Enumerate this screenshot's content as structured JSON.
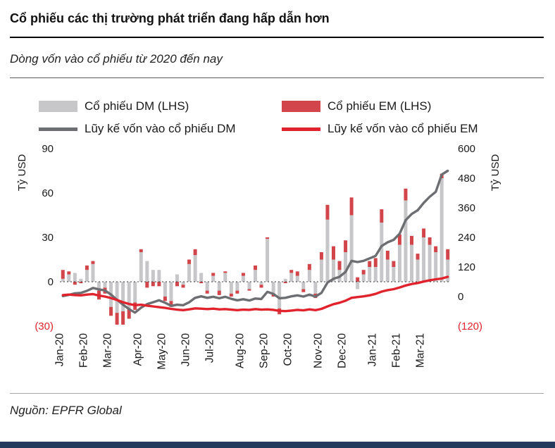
{
  "page": {
    "title": "Cổ phiếu các thị trường phát triển đang hấp dẫn hơn",
    "subtitle": "Dòng vốn vào cổ phiếu từ 2020 đến nay",
    "source": "Nguồn: EPFR Global"
  },
  "legend": {
    "dm_bar": "Cổ phiếu DM (LHS)",
    "em_bar": "Cổ phiếu EM (LHS)",
    "dm_line": "Lũy kế vốn vào cổ phiếu DM",
    "em_line": "Lũy kế vốn vào cổ phiếu EM"
  },
  "colors": {
    "dm_bar": "#c7c7c9",
    "em_bar": "#d2464b",
    "dm_line": "#6d6e71",
    "em_line": "#e0232d",
    "negative_tick": "#e0232d",
    "tick_text": "#1a1a1a",
    "footer_bar": "#233a5c"
  },
  "chart_data": {
    "type": "bar",
    "subtype": "weekly bars with cumulative lines (combo bar+line, dual axis)",
    "categories": [
      "Jan-20",
      "Feb-20",
      "Mar-20",
      "Apr-20",
      "May-20",
      "Jun-20",
      "Jul-20",
      "Aug-20",
      "Sep-20",
      "Oct-20",
      "Nov-20",
      "Dec-20",
      "Jan-21",
      "Feb-21",
      "Mar-21"
    ],
    "weeks_per_month": [
      4,
      4,
      5,
      4,
      4,
      4,
      5,
      4,
      4,
      5,
      4,
      5,
      4,
      4,
      5
    ],
    "left_axis": {
      "title": "Tỷ USD",
      "min": -30,
      "max": 90,
      "ticks": [
        90,
        60,
        30,
        0,
        -30
      ],
      "tick_labels": [
        "90",
        "60",
        "30",
        "0",
        "(30)"
      ]
    },
    "right_axis": {
      "title": "Tỷ USD",
      "min": -120,
      "max": 600,
      "ticks": [
        600,
        480,
        360,
        240,
        120,
        0,
        -120
      ],
      "tick_labels": [
        "600",
        "480",
        "360",
        "240",
        "120",
        "0",
        "(120)"
      ]
    },
    "grid": "none (dotted zero line only)",
    "legend_position": "top",
    "series": [
      {
        "name": "Cổ phiếu DM (LHS)",
        "type": "bar",
        "axis": "left",
        "color_key": "dm_bar",
        "values": [
          2,
          5,
          6,
          2,
          8,
          12,
          -6,
          -4,
          -17,
          -21,
          -20,
          -18,
          -14,
          20,
          14,
          8,
          8,
          -10,
          -13,
          5,
          -2,
          12,
          18,
          6,
          -6,
          4,
          -6,
          6,
          -8,
          -6,
          4,
          -5,
          8,
          -2,
          29,
          -8,
          -18,
          2,
          6,
          4,
          -5,
          8,
          -8,
          15,
          42,
          15,
          8,
          20,
          45,
          -5,
          5,
          10,
          10,
          40,
          15,
          10,
          25,
          55,
          25,
          15,
          30,
          25,
          20,
          70,
          15
        ]
      },
      {
        "name": "Cổ phiếu EM (LHS)",
        "type": "bar",
        "axis": "left",
        "stacked_on": "Cổ phiếu DM (LHS)",
        "color_key": "em_bar",
        "values": [
          6,
          2,
          -2,
          -1,
          3,
          2,
          -6,
          -4,
          -6,
          -8,
          -9,
          -7,
          -5,
          2,
          -4,
          -3,
          -3,
          -3,
          -4,
          -3,
          -2,
          3,
          4,
          -1,
          -2,
          2,
          -3,
          1,
          -2,
          -2,
          2,
          -1,
          3,
          -2,
          1,
          -2,
          -4,
          -1,
          2,
          3,
          -2,
          4,
          -3,
          5,
          10,
          9,
          6,
          8,
          12,
          3,
          3,
          4,
          6,
          9,
          6,
          4,
          7,
          8,
          6,
          4,
          6,
          5,
          4,
          3,
          7
        ]
      },
      {
        "name": "Lũy kế vốn vào cổ phiếu DM",
        "type": "line",
        "axis": "right",
        "color_key": "dm_line",
        "values": [
          2,
          7,
          13,
          15,
          23,
          35,
          29,
          25,
          8,
          -13,
          -33,
          -51,
          -65,
          -45,
          -31,
          -23,
          -15,
          -25,
          -38,
          -33,
          -35,
          -23,
          -5,
          1,
          -5,
          -1,
          -7,
          -1,
          -9,
          -15,
          -11,
          -16,
          -8,
          -10,
          19,
          11,
          -7,
          -5,
          1,
          5,
          0,
          8,
          0,
          15,
          57,
          72,
          80,
          100,
          145,
          140,
          145,
          155,
          165,
          205,
          220,
          230,
          255,
          310,
          335,
          350,
          380,
          405,
          425,
          495,
          510
        ]
      },
      {
        "name": "Lũy kế vốn vào cổ phiếu EM",
        "type": "line",
        "axis": "right",
        "color_key": "em_line",
        "values": [
          6,
          8,
          6,
          5,
          8,
          10,
          4,
          0,
          -6,
          -14,
          -23,
          -30,
          -35,
          -33,
          -37,
          -40,
          -43,
          -46,
          -50,
          -53,
          -55,
          -52,
          -48,
          -49,
          -51,
          -49,
          -52,
          -51,
          -53,
          -55,
          -53,
          -54,
          -51,
          -53,
          -52,
          -54,
          -58,
          -59,
          -57,
          -54,
          -56,
          -52,
          -55,
          -50,
          -40,
          -31,
          -25,
          -17,
          -5,
          -2,
          1,
          5,
          11,
          20,
          26,
          30,
          37,
          45,
          51,
          55,
          61,
          66,
          70,
          73,
          80
        ]
      }
    ]
  }
}
